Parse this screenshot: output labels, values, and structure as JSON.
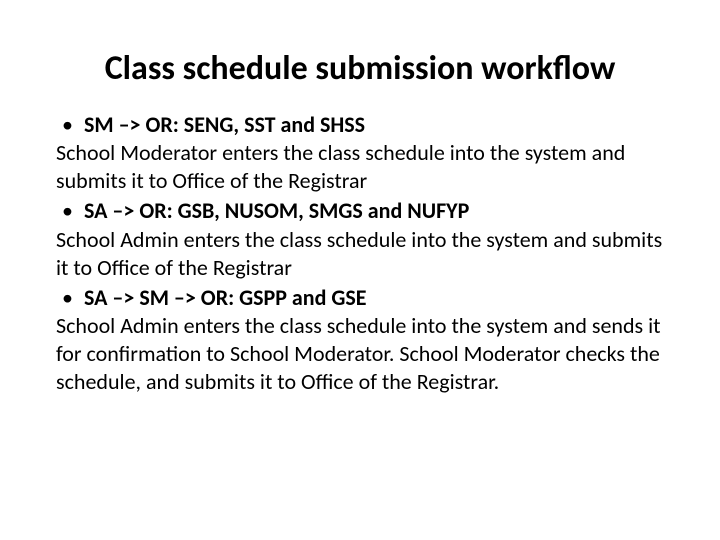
{
  "title": "Class schedule submission workflow",
  "items": [
    {
      "bullet_prefix": "SM –> OR:  ",
      "bullet_bold": "SENG, SST and SHSS",
      "body": "School Moderator enters the class schedule into the system and submits it to Office of the Registrar"
    },
    {
      "bullet_prefix": "SA –> OR: ",
      "bullet_bold": "GSB, NUSOM, SMGS and NUFYP",
      "body": "School Admin enters the class schedule into the system and submits it to Office of the Registrar"
    },
    {
      "bullet_prefix": "SA –> SM –> OR: ",
      "bullet_bold": "GSPP and GSE",
      "body": "School Admin enters the class schedule into the system and sends it for confirmation to School Moderator. School Moderator checks the schedule, and submits it to Office of the Registrar."
    }
  ],
  "style": {
    "title_fontsize": 34,
    "body_fontsize": 22,
    "text_color": "#000000",
    "background_color": "#ffffff",
    "font_family": "Calibri"
  }
}
